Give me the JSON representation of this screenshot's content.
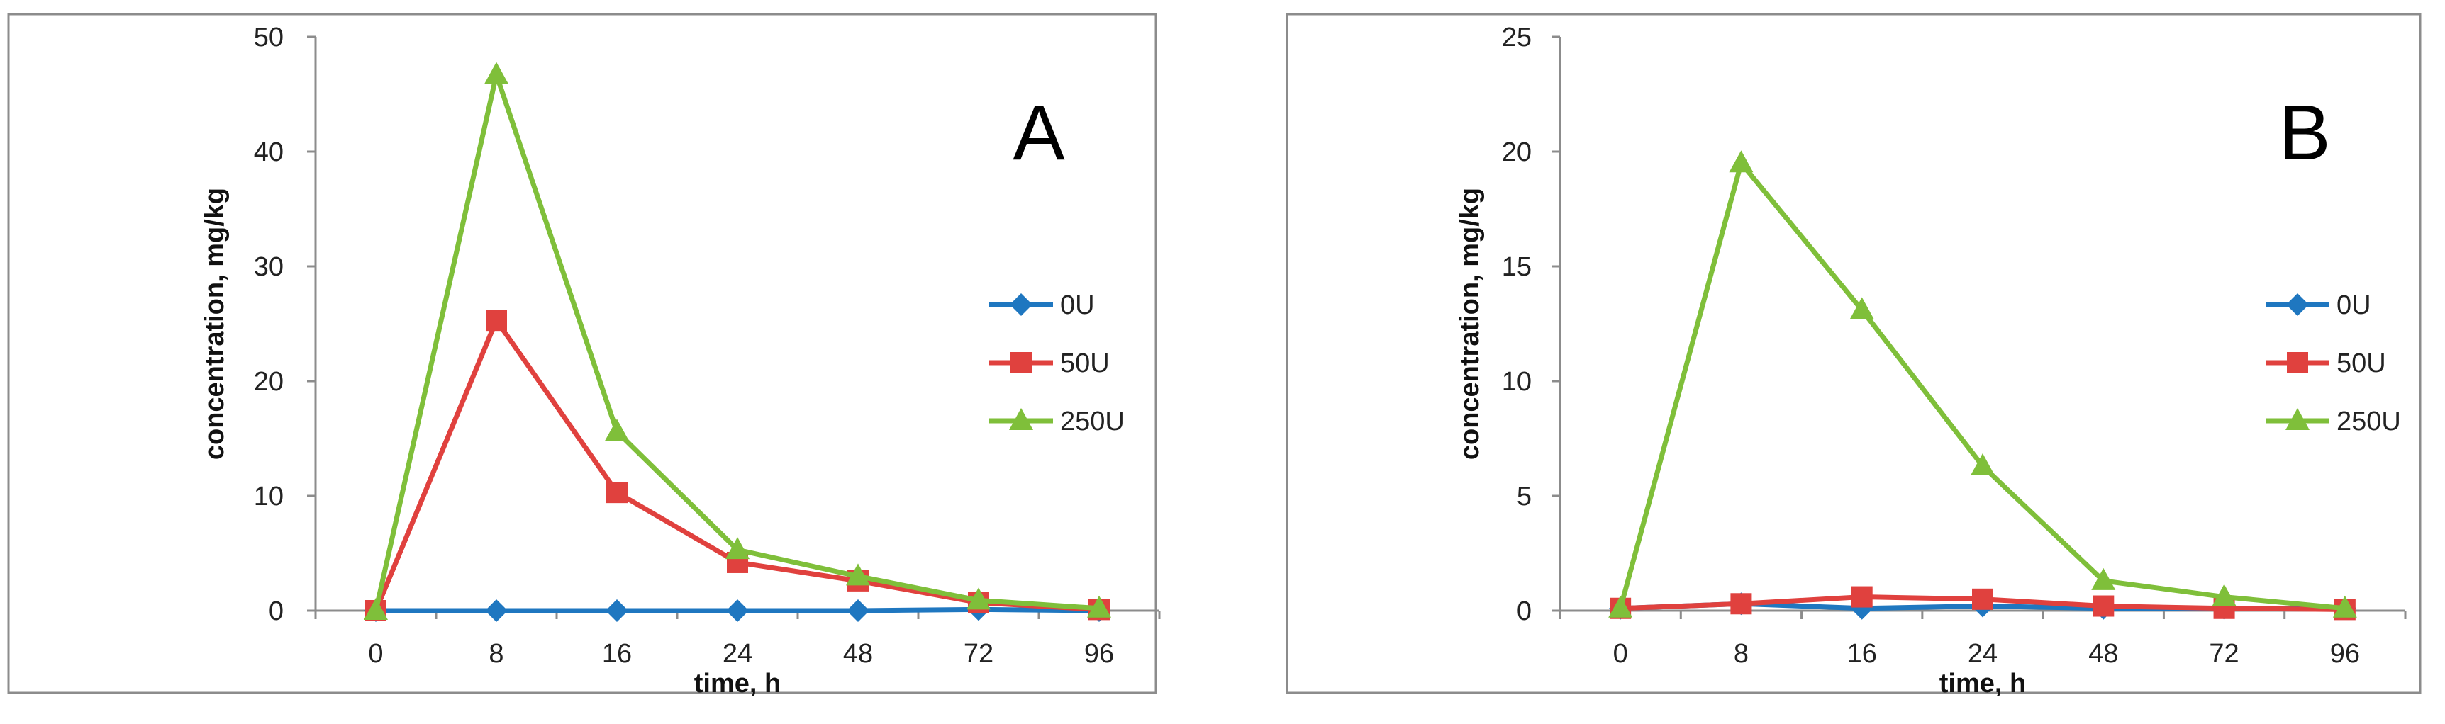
{
  "chart_data": [
    {
      "type": "line",
      "panel_label": "A",
      "categories": [
        "0",
        "8",
        "16",
        "24",
        "48",
        "72",
        "96"
      ],
      "series": [
        {
          "name": "0U",
          "color": "#1f77c0",
          "marker": "diamond",
          "values": [
            0,
            0,
            0,
            0,
            0,
            0.1,
            0
          ]
        },
        {
          "name": "50U",
          "color": "#e0413e",
          "marker": "square",
          "values": [
            0,
            25.3,
            10.3,
            4.2,
            2.6,
            0.7,
            0.1
          ]
        },
        {
          "name": "250U",
          "color": "#7fbf3a",
          "marker": "triangle",
          "values": [
            0,
            46.7,
            15.6,
            5.3,
            3.0,
            0.9,
            0.2
          ]
        }
      ],
      "xlabel": "time, h",
      "ylabel": "concentration, mg/kg",
      "ylim": [
        0,
        50
      ],
      "yticks": [
        0,
        10,
        20,
        30,
        40,
        50
      ],
      "grid": false,
      "legend_position": "right"
    },
    {
      "type": "line",
      "panel_label": "B",
      "categories": [
        "0",
        "8",
        "16",
        "24",
        "48",
        "72",
        "96"
      ],
      "series": [
        {
          "name": "0U",
          "color": "#1f77c0",
          "marker": "diamond",
          "values": [
            0.1,
            0.3,
            0.1,
            0.2,
            0.1,
            0.1,
            0.1
          ]
        },
        {
          "name": "50U",
          "color": "#e0413e",
          "marker": "square",
          "values": [
            0.1,
            0.3,
            0.6,
            0.5,
            0.2,
            0.1,
            0.05
          ]
        },
        {
          "name": "250U",
          "color": "#7fbf3a",
          "marker": "triangle",
          "values": [
            0.1,
            19.5,
            13.1,
            6.3,
            1.3,
            0.6,
            0.1
          ]
        }
      ],
      "xlabel": "time, h",
      "ylabel": "concentration, mg/kg",
      "ylim": [
        0,
        25
      ],
      "yticks": [
        0,
        5,
        10,
        15,
        20,
        25
      ],
      "grid": false,
      "legend_position": "right"
    }
  ]
}
